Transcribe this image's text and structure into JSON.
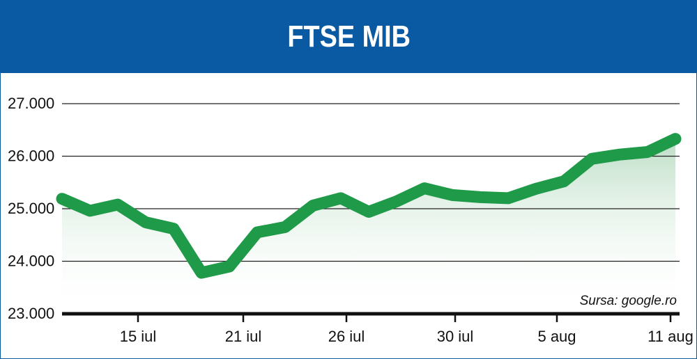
{
  "header": {
    "title": "FTSE MIB"
  },
  "colors": {
    "header_bg": "#0a5aa3",
    "line": "#1f9a48",
    "area_top": "#b9dcc3",
    "grid": "#222222"
  },
  "chart_data": {
    "type": "area",
    "title": "FTSE MIB",
    "xlabel": "",
    "ylabel": "",
    "ylim": [
      23000,
      27000
    ],
    "yticks": [
      27000,
      26000,
      25000,
      24000,
      23000
    ],
    "ytick_labels": [
      "27.000",
      "26.000",
      "25.000",
      "24.000",
      "23.000"
    ],
    "xticks": [
      "15 iul",
      "21 iul",
      "26 iul",
      "30 iul",
      "5 aug",
      "11 aug"
    ],
    "grid": true,
    "source": "Sursa: google.ro",
    "series": [
      {
        "values": [
          25190,
          24960,
          25080,
          24740,
          24620,
          23780,
          23900,
          24550,
          24650,
          25060,
          25200,
          24940,
          25140,
          25390,
          25260,
          25220,
          25200,
          25380,
          25520,
          25950,
          26030,
          26080,
          26330
        ]
      }
    ]
  }
}
